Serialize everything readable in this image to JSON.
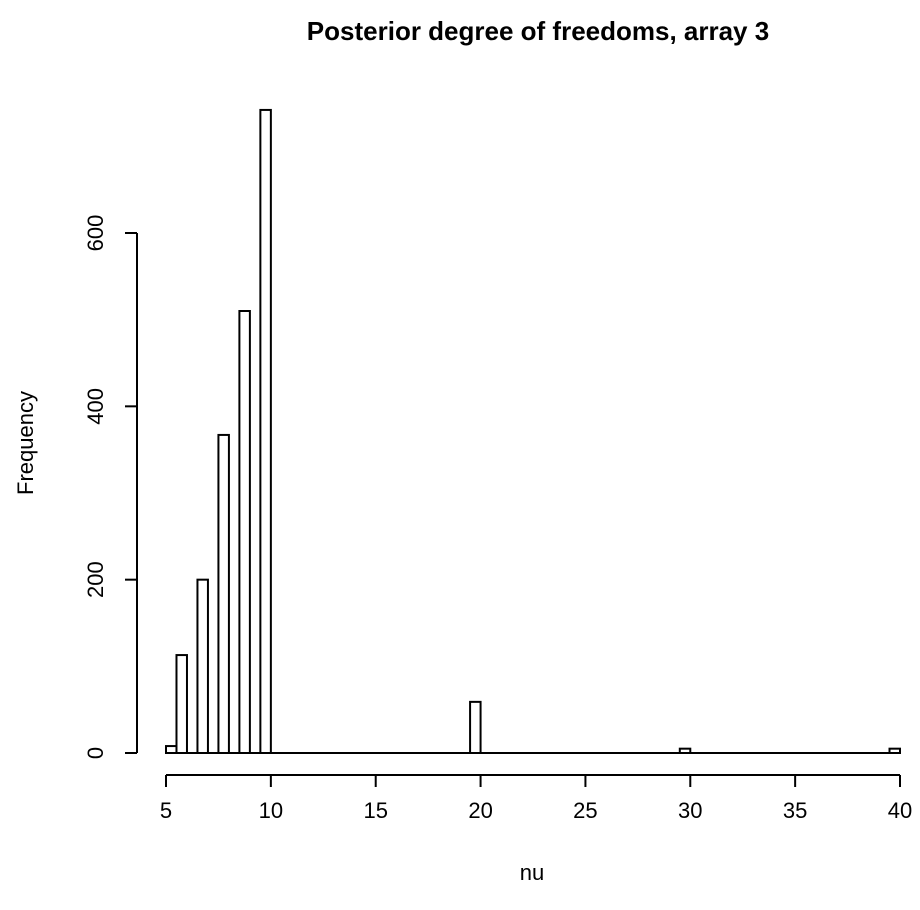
{
  "chart_data": {
    "type": "bar",
    "title": "Posterior degree of freedoms, array 3",
    "xlabel": "nu",
    "ylabel": "Frequency",
    "xlim": [
      5,
      40
    ],
    "ylim": [
      0,
      740
    ],
    "x_ticks": [
      5,
      10,
      15,
      20,
      25,
      30,
      35,
      40
    ],
    "y_ticks": [
      0,
      200,
      400,
      600
    ],
    "bin_width": 0.5,
    "bins": [
      {
        "x0": 5.0,
        "x1": 5.5,
        "count": 8
      },
      {
        "x0": 5.5,
        "x1": 6.0,
        "count": 113
      },
      {
        "x0": 6.5,
        "x1": 7.0,
        "count": 200
      },
      {
        "x0": 7.5,
        "x1": 8.0,
        "count": 367
      },
      {
        "x0": 8.5,
        "x1": 9.0,
        "count": 510
      },
      {
        "x0": 9.5,
        "x1": 10.0,
        "count": 742
      },
      {
        "x0": 19.5,
        "x1": 20.0,
        "count": 59
      },
      {
        "x0": 29.5,
        "x1": 30.0,
        "count": 5
      },
      {
        "x0": 39.5,
        "x1": 40.0,
        "count": 5
      }
    ],
    "grid": false
  }
}
